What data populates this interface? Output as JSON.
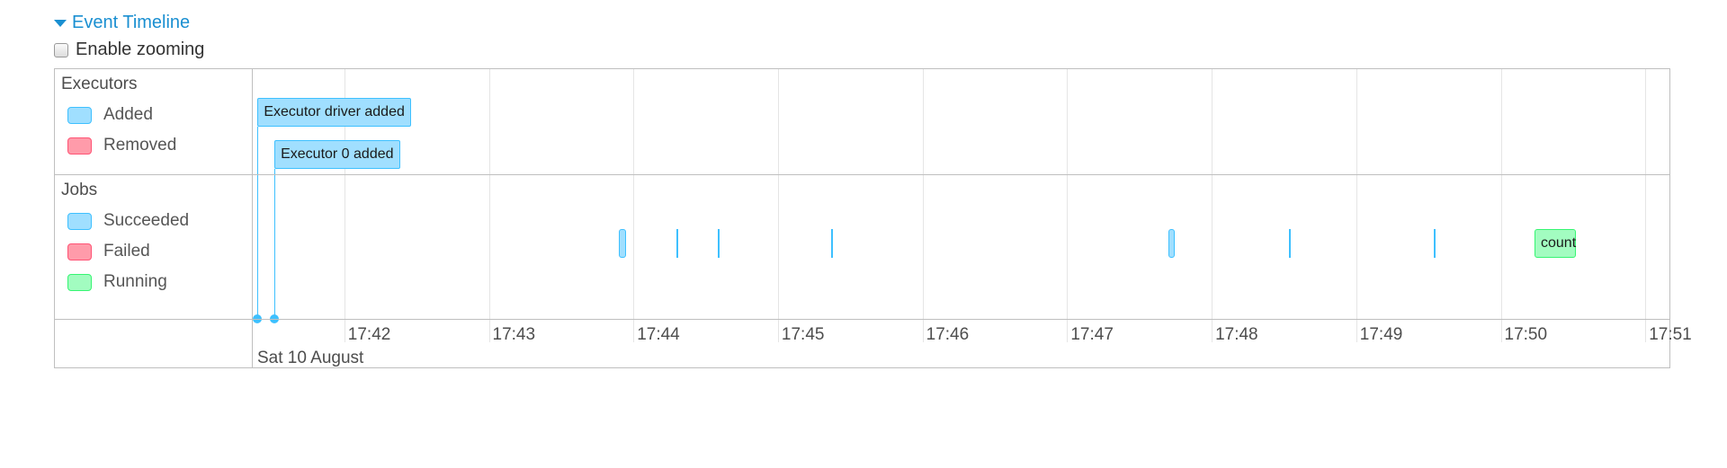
{
  "header": {
    "title": "Event Timeline",
    "caret_icon": "caret-down-icon"
  },
  "zoom": {
    "label": "Enable zooming",
    "checked": false
  },
  "colors": {
    "succeeded_bg": "#a0dfff",
    "succeeded_border": "#3ec0ff",
    "failed_bg": "#ff9baa",
    "failed_border": "#ff5475",
    "running_bg": "#a2fcc0",
    "running_border": "#36f572"
  },
  "groups": {
    "executors": {
      "title": "Executors",
      "legend": [
        {
          "label": "Added",
          "status": "succeeded"
        },
        {
          "label": "Removed",
          "status": "failed"
        }
      ]
    },
    "jobs": {
      "title": "Jobs",
      "legend": [
        {
          "label": "Succeeded",
          "status": "succeeded"
        },
        {
          "label": "Failed",
          "status": "failed"
        },
        {
          "label": "Running",
          "status": "running"
        }
      ]
    }
  },
  "axis": {
    "start": "17:41:22",
    "end": "17:51:10",
    "ticks": [
      "17:42",
      "17:43",
      "17:44",
      "17:45",
      "17:46",
      "17:47",
      "17:48",
      "17:49",
      "17:50",
      "17:51"
    ],
    "major_label": "Sat 10 August"
  },
  "executor_events": [
    {
      "label": "Executor driver added",
      "time": "17:41:24",
      "status": "succeeded"
    },
    {
      "label": "Executor 0 added",
      "time": "17:41:31",
      "status": "succeeded"
    }
  ],
  "jobs": [
    {
      "start": "17:43:54",
      "end": "17:43:57",
      "status": "succeeded",
      "label": ""
    },
    {
      "start": "17:44:18",
      "end": "17:44:18",
      "status": "succeeded",
      "label": ""
    },
    {
      "start": "17:44:35",
      "end": "17:44:35",
      "status": "succeeded",
      "label": ""
    },
    {
      "start": "17:45:22",
      "end": "17:45:22",
      "status": "succeeded",
      "label": ""
    },
    {
      "start": "17:47:42",
      "end": "17:47:43",
      "status": "succeeded",
      "label": ""
    },
    {
      "start": "17:48:32",
      "end": "17:48:32",
      "status": "succeeded",
      "label": ""
    },
    {
      "start": "17:49:32",
      "end": "17:49:32",
      "status": "succeeded",
      "label": ""
    },
    {
      "start": "17:50:14",
      "end": "17:50:31",
      "status": "running",
      "label": "count"
    }
  ]
}
